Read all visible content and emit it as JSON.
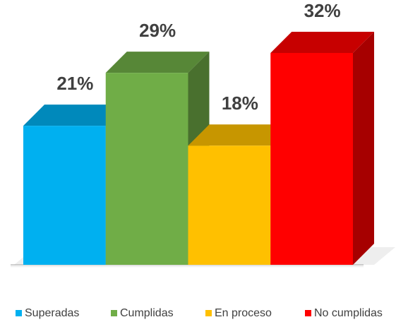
{
  "chart_data": {
    "type": "bar3d",
    "categories": [
      "Superadas",
      "Cumplidas",
      "En proceso",
      "No cumplidas"
    ],
    "values": [
      21,
      29,
      18,
      32
    ],
    "value_labels": [
      "21%",
      "29%",
      "18%",
      "32%"
    ],
    "colors": [
      "#00b0f0",
      "#70ad47",
      "#ffc000",
      "#ff0000"
    ],
    "legend": "bottom"
  }
}
